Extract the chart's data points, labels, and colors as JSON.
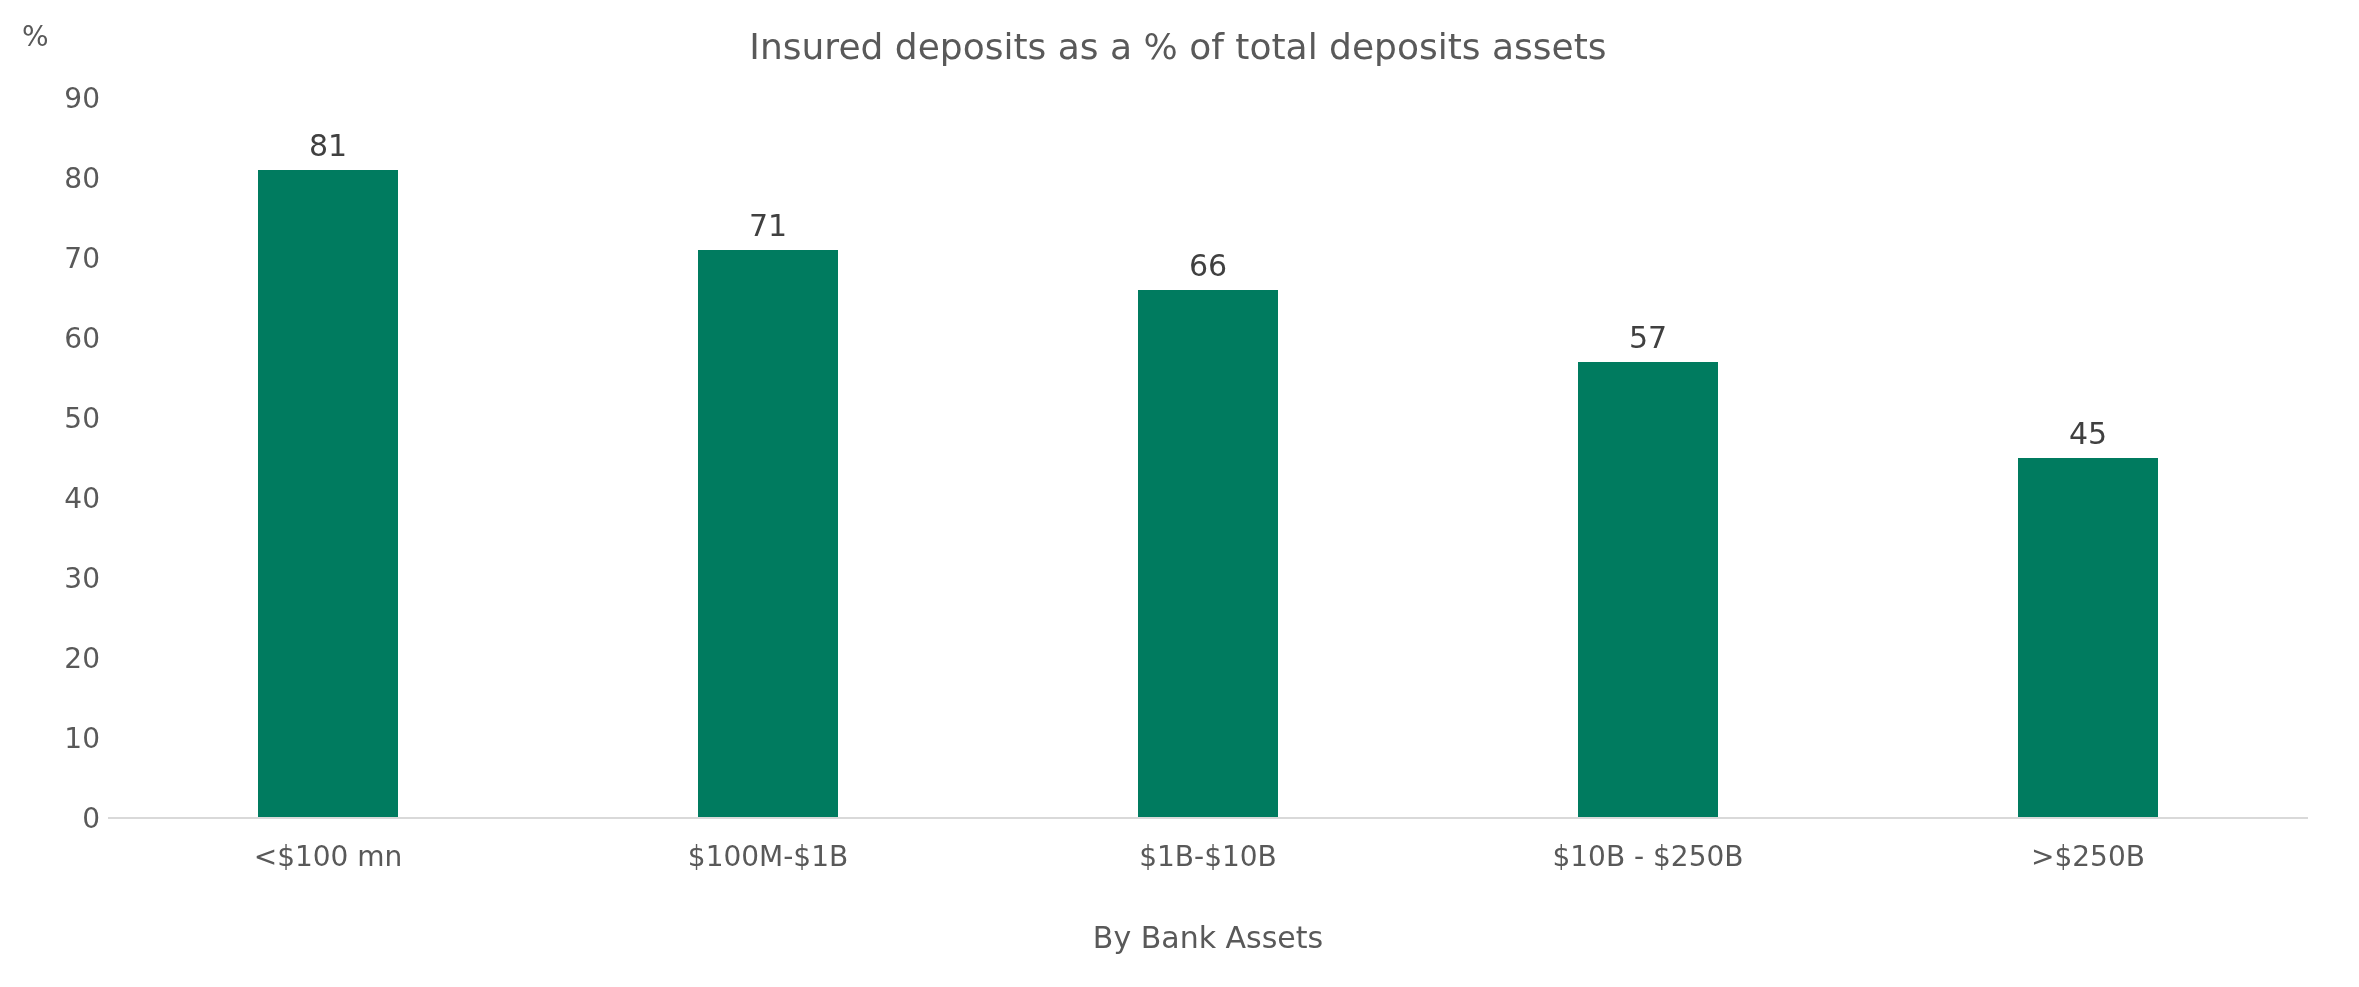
{
  "chart_data": {
    "type": "bar",
    "title": "Insured deposits as a % of total deposits assets",
    "ylabel": "%",
    "xlabel": "By Bank Assets",
    "categories": [
      "<$100 mn",
      "$100M-$1B",
      "$1B-$10B",
      "$10B - $250B",
      ">$250B"
    ],
    "values": [
      81,
      71,
      66,
      57,
      45
    ],
    "color": "#007b5f",
    "ylim": [
      0,
      90
    ],
    "yticks": [
      0,
      10,
      20,
      30,
      40,
      50,
      60,
      70,
      80,
      90
    ],
    "grid": false,
    "data_labels": true
  }
}
